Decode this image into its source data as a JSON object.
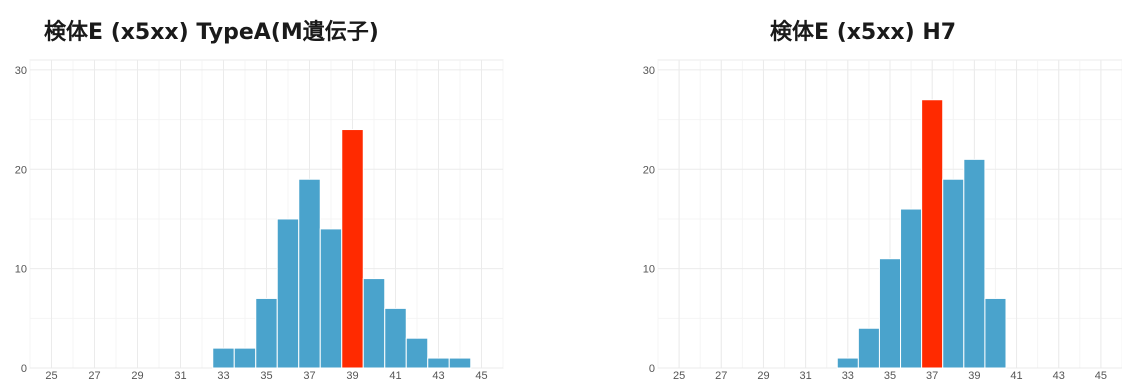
{
  "chart_data": [
    {
      "type": "bar",
      "title": "検体E (x5xx) TypeA(M遺伝子)",
      "xlabel": "",
      "ylabel": "",
      "bin_width": 1,
      "xlim": [
        24,
        46
      ],
      "ylim": [
        0,
        31
      ],
      "x_ticks": [
        "25",
        "27",
        "29",
        "31",
        "33",
        "35",
        "37",
        "39",
        "41",
        "43",
        "45"
      ],
      "y_ticks": [
        "0",
        "10",
        "20",
        "30"
      ],
      "bins": [
        32.5,
        33.5,
        34.5,
        35.5,
        36.5,
        37.5,
        38.5,
        39.5,
        40.5,
        41.5,
        42.5,
        43.5
      ],
      "values": [
        2,
        2,
        7,
        15,
        19,
        14,
        24,
        9,
        6,
        3,
        1,
        1
      ],
      "highlight_index": 6,
      "colors": {
        "bar": "#4aa3cc",
        "highlight": "#ff2a00",
        "grid": "#ebebeb"
      },
      "grid": true
    },
    {
      "type": "bar",
      "title": "検体E (x5xx) H7",
      "xlabel": "",
      "ylabel": "",
      "bin_width": 1,
      "xlim": [
        24,
        46
      ],
      "ylim": [
        0,
        31
      ],
      "x_ticks": [
        "25",
        "27",
        "29",
        "31",
        "33",
        "35",
        "37",
        "39",
        "41",
        "43",
        "45"
      ],
      "y_ticks": [
        "0",
        "10",
        "20",
        "30"
      ],
      "bins": [
        32.5,
        33.5,
        34.5,
        35.5,
        36.5,
        37.5,
        38.5,
        39.5
      ],
      "values": [
        1,
        4,
        11,
        16,
        27,
        19,
        21,
        7
      ],
      "highlight_index": 4,
      "colors": {
        "bar": "#4aa3cc",
        "highlight": "#ff2a00",
        "grid": "#ebebeb"
      },
      "grid": true
    }
  ]
}
